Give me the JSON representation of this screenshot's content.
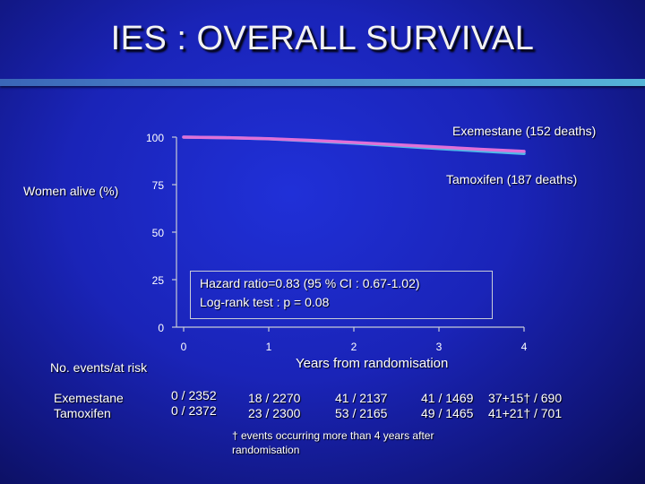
{
  "slide": {
    "title": "IES : OVERALL SURVIVAL"
  },
  "colors": {
    "background": "#1a24b8",
    "rule": "#4c86c8",
    "exemestane": "#e070d8",
    "tamoxifen": "#50b8e8",
    "axis": "#c8ccd8"
  },
  "chart_data": {
    "type": "line",
    "ylabel": "Women alive (%)",
    "xlabel": "Years from randomisation",
    "ylim": [
      0,
      100
    ],
    "xlim": [
      0,
      4
    ],
    "yticks": [
      "100",
      "75",
      "50",
      "25",
      "0"
    ],
    "xticks": [
      "0",
      "1",
      "2",
      "3",
      "4"
    ],
    "grid": false,
    "series": [
      {
        "name": "Exemestane (152 deaths)",
        "color": "#e070d8",
        "x": [
          0,
          0.5,
          1,
          1.5,
          2,
          2.5,
          3,
          3.5,
          4
        ],
        "y": [
          100,
          99.7,
          99.2,
          98.3,
          97.2,
          96.0,
          94.8,
          93.6,
          92.5
        ]
      },
      {
        "name": "Tamoxifen (187 deaths)",
        "color": "#50b8e8",
        "x": [
          0,
          0.5,
          1,
          1.5,
          2,
          2.5,
          3,
          3.5,
          4
        ],
        "y": [
          100,
          99.7,
          99.1,
          98.0,
          96.8,
          95.4,
          94.0,
          92.7,
          91.4
        ]
      }
    ],
    "annotation": {
      "line1": "Hazard ratio=0.83 (95 % CI : 0.67-1.02)",
      "line2": "Log-rank test : p = 0.08"
    }
  },
  "risk_table": {
    "header": "No. events/at risk",
    "rows": [
      {
        "label": "Exemestane",
        "values": [
          "0 / 2352",
          "18 / 2270",
          "41 / 2137",
          "41 / 1469",
          "37+15† / 690"
        ]
      },
      {
        "label": "Tamoxifen",
        "values": [
          "0 / 2372",
          "23 / 2300",
          "53 / 2165",
          "49 / 1465",
          "41+21† / 701"
        ]
      }
    ]
  },
  "footnote": {
    "line1": "† events occurring more than 4 years after",
    "line2": "randomisation"
  }
}
